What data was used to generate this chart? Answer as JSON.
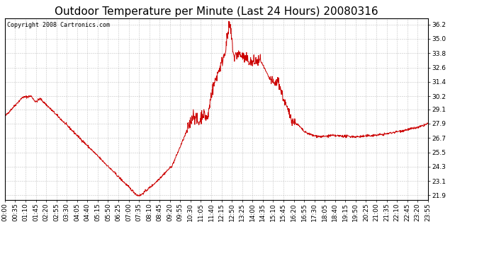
{
  "title": "Outdoor Temperature per Minute (Last 24 Hours) 20080316",
  "copyright": "Copyright 2008 Cartronics.com",
  "line_color": "#cc0000",
  "bg_color": "#ffffff",
  "plot_bg_color": "#ffffff",
  "grid_color": "#aaaaaa",
  "yticks": [
    21.9,
    23.1,
    24.3,
    25.5,
    26.7,
    27.9,
    29.1,
    30.2,
    31.4,
    32.6,
    33.8,
    35.0,
    36.2
  ],
  "ylim": [
    21.5,
    36.7
  ],
  "title_fontsize": 11,
  "tick_fontsize": 6.5,
  "copyright_fontsize": 6.0,
  "xtick_labels": [
    "00:00",
    "00:35",
    "01:10",
    "01:45",
    "02:20",
    "02:55",
    "03:30",
    "04:05",
    "04:40",
    "05:15",
    "05:50",
    "06:25",
    "07:00",
    "07:35",
    "08:10",
    "08:45",
    "09:20",
    "09:55",
    "10:30",
    "11:05",
    "11:40",
    "12:15",
    "12:50",
    "13:25",
    "14:00",
    "14:35",
    "15:10",
    "15:45",
    "16:20",
    "16:55",
    "17:30",
    "18:05",
    "18:40",
    "19:15",
    "19:50",
    "20:25",
    "21:00",
    "21:35",
    "22:10",
    "22:45",
    "23:20",
    "23:55"
  ]
}
